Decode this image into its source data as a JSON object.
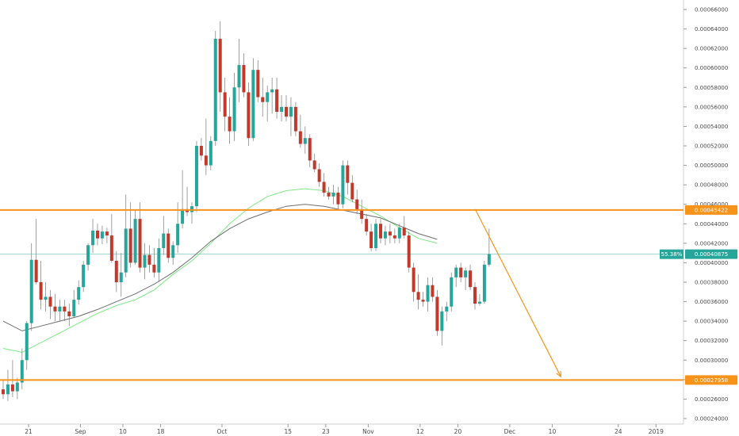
{
  "colors": {
    "up": "#26a69a",
    "down": "#c0392b",
    "wick": "#888888",
    "ema_fast": "#7ee787",
    "ema_slow": "#6d6d6d",
    "level": "#f7931a",
    "price_line": "#26a69a",
    "grid": "#ffffff"
  },
  "price_badge": {
    "percent": "55.38%",
    "price": "0.00040875"
  },
  "chart_data": {
    "type": "candlestick",
    "ylim": [
      0.00024,
      0.00066
    ],
    "y_ticks": [
      0.00024,
      0.00026,
      0.00028,
      0.0003,
      0.00032,
      0.00034,
      0.00036,
      0.00038,
      0.0004,
      0.00042,
      0.00044,
      0.00046,
      0.00048,
      0.0005,
      0.00052,
      0.00054,
      0.00056,
      0.00058,
      0.0006,
      0.00062,
      0.00064,
      0.00066
    ],
    "y_tick_labels": [
      "0.00024000",
      "0.00026000",
      "0.00028000",
      "0.00030000",
      "0.00032000",
      "0.00034000",
      "0.00036000",
      "0.00038000",
      "0.00040000",
      "0.00042000",
      "0.00044000",
      "0.00046000",
      "0.00048000",
      "0.00050000",
      "0.00052000",
      "0.00054000",
      "0.00056000",
      "0.00058000",
      "0.00060000",
      "0.00062000",
      "0.00064000",
      "0.00066000"
    ],
    "x_ticks": [
      {
        "label": "21",
        "day": 0
      },
      {
        "label": "Sep",
        "day": 11
      },
      {
        "label": "10",
        "day": 20
      },
      {
        "label": "18",
        "day": 28
      },
      {
        "label": "Oct",
        "day": 41
      },
      {
        "label": "15",
        "day": 55
      },
      {
        "label": "23",
        "day": 63
      },
      {
        "label": "Nov",
        "day": 72
      },
      {
        "label": "12",
        "day": 83
      },
      {
        "label": "20",
        "day": 91
      },
      {
        "label": "Dec",
        "day": 102
      },
      {
        "label": "10",
        "day": 111
      },
      {
        "label": "24",
        "day": 125
      },
      {
        "label": "2019",
        "day": 133
      }
    ],
    "candles": [
      {
        "o": 0.00027,
        "h": 0.00028,
        "l": 0.00026,
        "c": 0.000265
      },
      {
        "o": 0.000265,
        "h": 0.00029,
        "l": 0.000258,
        "c": 0.000275
      },
      {
        "o": 0.000275,
        "h": 0.0003,
        "l": 0.000262,
        "c": 0.000268
      },
      {
        "o": 0.000268,
        "h": 0.000282,
        "l": 0.00026,
        "c": 0.000277
      },
      {
        "o": 0.000277,
        "h": 0.000312,
        "l": 0.00027,
        "c": 0.0003
      },
      {
        "o": 0.0003,
        "h": 0.00034,
        "l": 0.00029,
        "c": 0.000338
      },
      {
        "o": 0.000338,
        "h": 0.00042,
        "l": 0.00033,
        "c": 0.000403
      },
      {
        "o": 0.000403,
        "h": 0.000445,
        "l": 0.000378,
        "c": 0.00038
      },
      {
        "o": 0.00038,
        "h": 0.000402,
        "l": 0.000352,
        "c": 0.000362
      },
      {
        "o": 0.000362,
        "h": 0.00038,
        "l": 0.00035,
        "c": 0.000365
      },
      {
        "o": 0.000365,
        "h": 0.000372,
        "l": 0.000342,
        "c": 0.000355
      },
      {
        "o": 0.000355,
        "h": 0.000368,
        "l": 0.00034,
        "c": 0.00035
      },
      {
        "o": 0.00035,
        "h": 0.000362,
        "l": 0.00034,
        "c": 0.000355
      },
      {
        "o": 0.000355,
        "h": 0.000362,
        "l": 0.00034,
        "c": 0.00035
      },
      {
        "o": 0.00035,
        "h": 0.000358,
        "l": 0.000335,
        "c": 0.000345
      },
      {
        "o": 0.000345,
        "h": 0.000372,
        "l": 0.000343,
        "c": 0.000362
      },
      {
        "o": 0.000362,
        "h": 0.000382,
        "l": 0.000357,
        "c": 0.000375
      },
      {
        "o": 0.000375,
        "h": 0.000402,
        "l": 0.00037,
        "c": 0.000398
      },
      {
        "o": 0.000398,
        "h": 0.00042,
        "l": 0.000392,
        "c": 0.000418
      },
      {
        "o": 0.000418,
        "h": 0.000445,
        "l": 0.00041,
        "c": 0.000433
      },
      {
        "o": 0.000433,
        "h": 0.00044,
        "l": 0.000418,
        "c": 0.000425
      },
      {
        "o": 0.000425,
        "h": 0.000438,
        "l": 0.000419,
        "c": 0.000432
      },
      {
        "o": 0.000432,
        "h": 0.000436,
        "l": 0.00042,
        "c": 0.000428
      },
      {
        "o": 0.000428,
        "h": 0.00045,
        "l": 0.0004,
        "c": 0.000402
      },
      {
        "o": 0.000402,
        "h": 0.000412,
        "l": 0.00037,
        "c": 0.00038
      },
      {
        "o": 0.00038,
        "h": 0.00041,
        "l": 0.000365,
        "c": 0.00039
      },
      {
        "o": 0.00039,
        "h": 0.00047,
        "l": 0.000385,
        "c": 0.000435
      },
      {
        "o": 0.000435,
        "h": 0.000462,
        "l": 0.000395,
        "c": 0.0004
      },
      {
        "o": 0.0004,
        "h": 0.000455,
        "l": 0.000398,
        "c": 0.000445
      },
      {
        "o": 0.000445,
        "h": 0.000462,
        "l": 0.00039,
        "c": 0.000395
      },
      {
        "o": 0.000395,
        "h": 0.00042,
        "l": 0.000383,
        "c": 0.000408
      },
      {
        "o": 0.000408,
        "h": 0.000418,
        "l": 0.00039,
        "c": 0.000398
      },
      {
        "o": 0.000398,
        "h": 0.000415,
        "l": 0.000385,
        "c": 0.00039
      },
      {
        "o": 0.00039,
        "h": 0.000425,
        "l": 0.00038,
        "c": 0.000415
      },
      {
        "o": 0.000415,
        "h": 0.000448,
        "l": 0.000408,
        "c": 0.00043
      },
      {
        "o": 0.00043,
        "h": 0.000435,
        "l": 0.0004,
        "c": 0.000405
      },
      {
        "o": 0.000405,
        "h": 0.000422,
        "l": 0.000398,
        "c": 0.000418
      },
      {
        "o": 0.000418,
        "h": 0.000462,
        "l": 0.00041,
        "c": 0.00044
      },
      {
        "o": 0.00044,
        "h": 0.000495,
        "l": 0.000435,
        "c": 0.000455
      },
      {
        "o": 0.000455,
        "h": 0.000478,
        "l": 0.000448,
        "c": 0.000452
      },
      {
        "o": 0.000452,
        "h": 0.000462,
        "l": 0.00044,
        "c": 0.000458
      },
      {
        "o": 0.000458,
        "h": 0.000525,
        "l": 0.000452,
        "c": 0.00052
      },
      {
        "o": 0.00052,
        "h": 0.000528,
        "l": 0.000505,
        "c": 0.00051
      },
      {
        "o": 0.00051,
        "h": 0.000548,
        "l": 0.00049,
        "c": 0.0005
      },
      {
        "o": 0.0005,
        "h": 0.00053,
        "l": 0.000495,
        "c": 0.000525
      },
      {
        "o": 0.000525,
        "h": 0.000638,
        "l": 0.00052,
        "c": 0.00063
      },
      {
        "o": 0.00063,
        "h": 0.000648,
        "l": 0.000555,
        "c": 0.000575
      },
      {
        "o": 0.000575,
        "h": 0.00059,
        "l": 0.000535,
        "c": 0.00055
      },
      {
        "o": 0.00055,
        "h": 0.00057,
        "l": 0.000522,
        "c": 0.000535
      },
      {
        "o": 0.000535,
        "h": 0.000595,
        "l": 0.000525,
        "c": 0.00058
      },
      {
        "o": 0.00058,
        "h": 0.00063,
        "l": 0.000565,
        "c": 0.000603
      },
      {
        "o": 0.000603,
        "h": 0.000615,
        "l": 0.00057,
        "c": 0.000575
      },
      {
        "o": 0.000575,
        "h": 0.000585,
        "l": 0.00052,
        "c": 0.000528
      },
      {
        "o": 0.000528,
        "h": 0.00061,
        "l": 0.000525,
        "c": 0.000598
      },
      {
        "o": 0.000598,
        "h": 0.000608,
        "l": 0.000565,
        "c": 0.00057
      },
      {
        "o": 0.00057,
        "h": 0.00059,
        "l": 0.00055,
        "c": 0.000565
      },
      {
        "o": 0.000565,
        "h": 0.000582,
        "l": 0.000545,
        "c": 0.000575
      },
      {
        "o": 0.000575,
        "h": 0.00059,
        "l": 0.000553,
        "c": 0.000578
      },
      {
        "o": 0.000578,
        "h": 0.00059,
        "l": 0.000548,
        "c": 0.000555
      },
      {
        "o": 0.000555,
        "h": 0.000572,
        "l": 0.000545,
        "c": 0.00056
      },
      {
        "o": 0.00056,
        "h": 0.000572,
        "l": 0.000545,
        "c": 0.00055
      },
      {
        "o": 0.00055,
        "h": 0.00057,
        "l": 0.00053,
        "c": 0.00056
      },
      {
        "o": 0.00056,
        "h": 0.000565,
        "l": 0.00053,
        "c": 0.000535
      },
      {
        "o": 0.000535,
        "h": 0.000552,
        "l": 0.000518,
        "c": 0.000522
      },
      {
        "o": 0.000522,
        "h": 0.00054,
        "l": 0.000512,
        "c": 0.000528
      },
      {
        "o": 0.000528,
        "h": 0.000532,
        "l": 0.000498,
        "c": 0.000505
      },
      {
        "o": 0.000505,
        "h": 0.000512,
        "l": 0.000493,
        "c": 0.000496
      },
      {
        "o": 0.000496,
        "h": 0.000502,
        "l": 0.000478,
        "c": 0.000483
      },
      {
        "o": 0.000483,
        "h": 0.000492,
        "l": 0.000468,
        "c": 0.000472
      },
      {
        "o": 0.000472,
        "h": 0.000478,
        "l": 0.000465,
        "c": 0.000468
      },
      {
        "o": 0.000468,
        "h": 0.00048,
        "l": 0.00046,
        "c": 0.000472
      },
      {
        "o": 0.000472,
        "h": 0.000478,
        "l": 0.000455,
        "c": 0.00046
      },
      {
        "o": 0.00046,
        "h": 0.000505,
        "l": 0.000456,
        "c": 0.0005
      },
      {
        "o": 0.0005,
        "h": 0.000505,
        "l": 0.00047,
        "c": 0.000482
      },
      {
        "o": 0.000482,
        "h": 0.00049,
        "l": 0.000462,
        "c": 0.000465
      },
      {
        "o": 0.000465,
        "h": 0.000475,
        "l": 0.00045,
        "c": 0.000455
      },
      {
        "o": 0.000455,
        "h": 0.000465,
        "l": 0.00044,
        "c": 0.000445
      },
      {
        "o": 0.000445,
        "h": 0.00045,
        "l": 0.000428,
        "c": 0.000432
      },
      {
        "o": 0.000432,
        "h": 0.00044,
        "l": 0.000412,
        "c": 0.000415
      },
      {
        "o": 0.000415,
        "h": 0.000445,
        "l": 0.000412,
        "c": 0.00044
      },
      {
        "o": 0.00044,
        "h": 0.000445,
        "l": 0.00042,
        "c": 0.000425
      },
      {
        "o": 0.000425,
        "h": 0.000438,
        "l": 0.000418,
        "c": 0.000432
      },
      {
        "o": 0.000432,
        "h": 0.00044,
        "l": 0.00042,
        "c": 0.000428
      },
      {
        "o": 0.000428,
        "h": 0.000435,
        "l": 0.00042,
        "c": 0.000425
      },
      {
        "o": 0.000425,
        "h": 0.00044,
        "l": 0.00042,
        "c": 0.000436
      },
      {
        "o": 0.000436,
        "h": 0.000448,
        "l": 0.000425,
        "c": 0.000428
      },
      {
        "o": 0.000428,
        "h": 0.000432,
        "l": 0.00039,
        "c": 0.000395
      },
      {
        "o": 0.000395,
        "h": 0.0004,
        "l": 0.00036,
        "c": 0.00037
      },
      {
        "o": 0.00037,
        "h": 0.000388,
        "l": 0.000352,
        "c": 0.000362
      },
      {
        "o": 0.000362,
        "h": 0.00037,
        "l": 0.000355,
        "c": 0.00036
      },
      {
        "o": 0.00036,
        "h": 0.000385,
        "l": 0.00035,
        "c": 0.000377
      },
      {
        "o": 0.000377,
        "h": 0.000385,
        "l": 0.00036,
        "c": 0.000365
      },
      {
        "o": 0.000365,
        "h": 0.000372,
        "l": 0.000325,
        "c": 0.00033
      },
      {
        "o": 0.00033,
        "h": 0.000355,
        "l": 0.000315,
        "c": 0.00035
      },
      {
        "o": 0.00035,
        "h": 0.00036,
        "l": 0.00034,
        "c": 0.000355
      },
      {
        "o": 0.000355,
        "h": 0.00039,
        "l": 0.00035,
        "c": 0.000385
      },
      {
        "o": 0.000385,
        "h": 0.000398,
        "l": 0.000375,
        "c": 0.000395
      },
      {
        "o": 0.000395,
        "h": 0.0004,
        "l": 0.00038,
        "c": 0.000385
      },
      {
        "o": 0.000385,
        "h": 0.000395,
        "l": 0.000372,
        "c": 0.000392
      },
      {
        "o": 0.000392,
        "h": 0.000398,
        "l": 0.000372,
        "c": 0.000375
      },
      {
        "o": 0.000375,
        "h": 0.00038,
        "l": 0.000352,
        "c": 0.000358
      },
      {
        "o": 0.000358,
        "h": 0.000368,
        "l": 0.000356,
        "c": 0.00036
      },
      {
        "o": 0.00036,
        "h": 0.000402,
        "l": 0.000358,
        "c": 0.000398
      },
      {
        "o": 0.000398,
        "h": 0.000435,
        "l": 0.000396,
        "c": 0.000409
      }
    ],
    "ema_fast": [
      [
        0,
        0.000312
      ],
      [
        4,
        0.000308
      ],
      [
        8,
        0.000318
      ],
      [
        12,
        0.000328
      ],
      [
        16,
        0.000338
      ],
      [
        20,
        0.000348
      ],
      [
        24,
        0.000356
      ],
      [
        28,
        0.000362
      ],
      [
        32,
        0.000372
      ],
      [
        36,
        0.000388
      ],
      [
        40,
        0.000402
      ],
      [
        44,
        0.00042
      ],
      [
        48,
        0.00044
      ],
      [
        52,
        0.000456
      ],
      [
        56,
        0.000468
      ],
      [
        60,
        0.000474
      ],
      [
        64,
        0.000476
      ],
      [
        68,
        0.000474
      ],
      [
        72,
        0.000468
      ],
      [
        76,
        0.000458
      ],
      [
        80,
        0.000448
      ],
      [
        84,
        0.000436
      ],
      [
        88,
        0.000425
      ],
      [
        92,
        0.00042
      ]
    ],
    "ema_slow": [
      [
        0,
        0.00034
      ],
      [
        4,
        0.00033
      ],
      [
        8,
        0.000335
      ],
      [
        12,
        0.00034
      ],
      [
        16,
        0.000345
      ],
      [
        20,
        0.000352
      ],
      [
        24,
        0.00036
      ],
      [
        28,
        0.000368
      ],
      [
        32,
        0.000378
      ],
      [
        36,
        0.00039
      ],
      [
        40,
        0.000405
      ],
      [
        44,
        0.000422
      ],
      [
        48,
        0.000435
      ],
      [
        52,
        0.000445
      ],
      [
        56,
        0.000452
      ],
      [
        60,
        0.000458
      ],
      [
        64,
        0.00046
      ],
      [
        68,
        0.000458
      ],
      [
        72,
        0.000454
      ],
      [
        76,
        0.00045
      ],
      [
        80,
        0.000446
      ],
      [
        84,
        0.000438
      ],
      [
        88,
        0.00043
      ],
      [
        92,
        0.000424
      ]
    ],
    "levels": [
      {
        "price": 0.00045422,
        "label": "0.00045422"
      },
      {
        "price": 0.00027958,
        "label": "0.00027958"
      }
    ],
    "current_price": 0.00040875,
    "projection_arrow": {
      "from_day": 95,
      "from_price": 0.000455,
      "to_day": 114,
      "to_price": 0.000283
    }
  }
}
